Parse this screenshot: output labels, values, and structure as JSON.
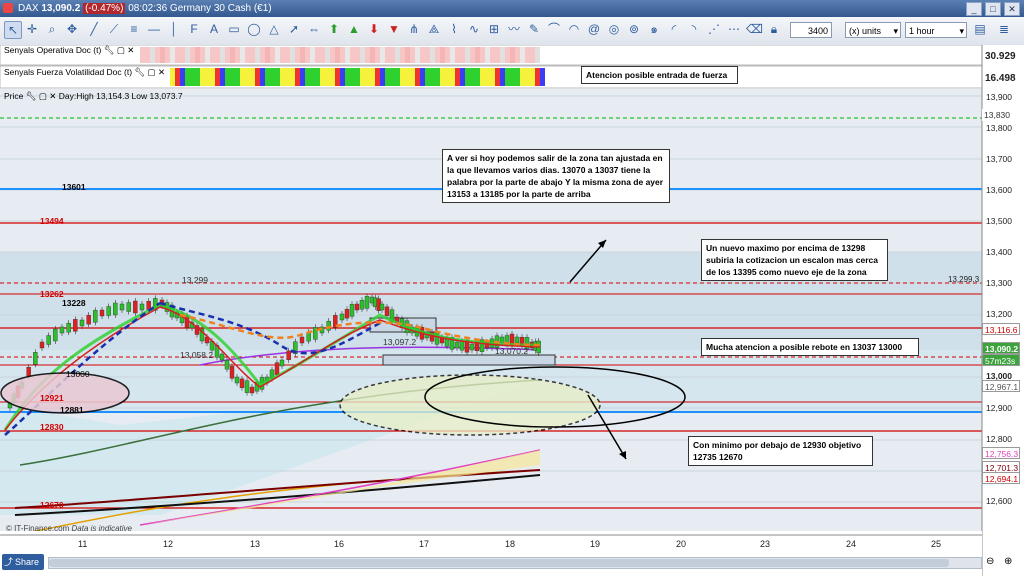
{
  "window": {
    "symbol": "DAX",
    "price": "13,090.2",
    "change": "(-0.47%)",
    "time": "08:02:36",
    "instrument": "Germany 30 Cash (€1)"
  },
  "toolbar": {
    "quantity": "3400",
    "units": "(x) units",
    "interval": "1 hour"
  },
  "panels": {
    "operativa": {
      "label": "Senyals Operativa Doc (t)",
      "value": "30.929"
    },
    "fuerza": {
      "label": "Senyals Fuerza Volatilidad Doc (t)",
      "value": "16.498"
    },
    "price": {
      "label": "Price",
      "daystats": "Day:High 13,154.3 Low 13,073.7"
    }
  },
  "y_axis": {
    "ticks": [
      "13,900",
      "13,800",
      "13,700",
      "13,600",
      "13,500",
      "13,400",
      "13,300",
      "13,200",
      "13,000",
      "12,900",
      "12,800",
      "12,600"
    ],
    "price_tags": {
      "last": "13,090.2",
      "countdown": "57m23s",
      "level_13299": "13,299.3",
      "level_12967": "12,967.1",
      "level_12756": "12,756.3",
      "level_12694": "12,694.1",
      "level_12701": "12,701.3",
      "level_13116": "13,116.6",
      "level_13830": "13,830"
    }
  },
  "x_axis": {
    "ticks": [
      "11",
      "12",
      "13",
      "16",
      "17",
      "18",
      "19",
      "20",
      "23",
      "24",
      "25"
    ]
  },
  "levels": {
    "l13601": "13601",
    "l13494": "13494",
    "l13262": "13262",
    "l13228": "13228",
    "l13299": "13,299",
    "l13058": "13,058.2",
    "l13097": "13,097.2",
    "l13070": "13,070.2",
    "l13000": "13000",
    "l12921": "12921",
    "l12881": "12881",
    "l12830": "12830",
    "l12670": "12670"
  },
  "annotations": {
    "fuerza": "Atencion posible entrada de fuerza",
    "zona": "A ver si hoy podemos salir de la zona tan ajustada en la que llevamos varios dias. 13070 a 13037 tiene la palabra por la parte de abajo Y la misma zona de ayer 13153 a 13185 por la parte de arriba",
    "maximo": "Un nuevo maximo por encima de 13298 subiria la cotizacion un escalon mas cerca de los 13395 como nuevo eje de la zona",
    "rebote": "Mucha atencion a posible rebote en 13037 13000",
    "minimo": "Con minimo por debajo de 12930 objetivo 12735 12670"
  },
  "footer": {
    "share": "Share",
    "credit": "IT-Finance.com",
    "credit_note": "Data is indicative"
  },
  "colors": {
    "accent": "#2f5e9e",
    "red_level": "#d40000",
    "blue_level": "#1e90ff",
    "support_fill": "#cfe6ea"
  }
}
